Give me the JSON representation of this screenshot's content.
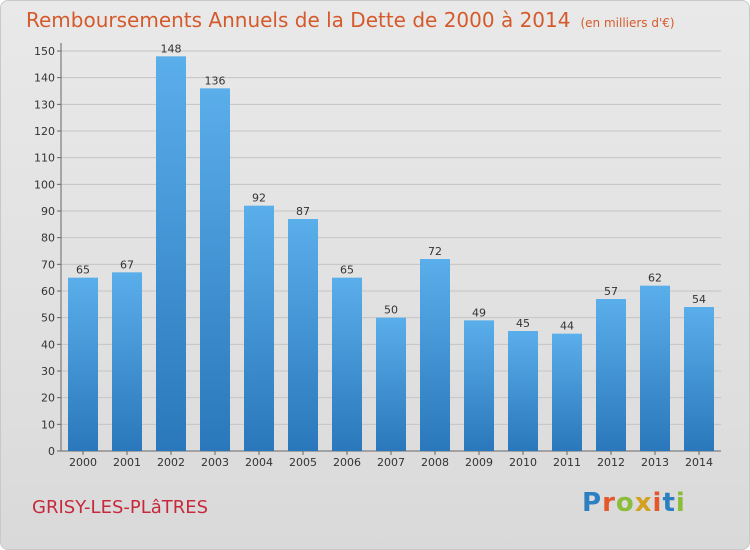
{
  "header": {
    "title": "Remboursements Annuels de la Dette de 2000 à 2014",
    "unit": "(en milliers d'€)"
  },
  "footer": {
    "commune": "GRISY-LES-PLâTRES",
    "logo": [
      "P",
      "r",
      "o",
      "x",
      "i",
      "t",
      "i"
    ]
  },
  "colors": {
    "title": "#d45a2c",
    "commune": "#c7293c",
    "bar_top": "#5aaeea",
    "bar_bottom": "#2a78bb"
  },
  "chart_data": {
    "type": "bar",
    "title": "Remboursements Annuels de la Dette de 2000 à 2014",
    "xlabel": "",
    "ylabel": "",
    "categories": [
      "2000",
      "2001",
      "2002",
      "2003",
      "2004",
      "2005",
      "2006",
      "2007",
      "2008",
      "2009",
      "2010",
      "2011",
      "2012",
      "2013",
      "2014"
    ],
    "values": [
      65,
      67,
      148,
      136,
      92,
      87,
      65,
      50,
      72,
      49,
      45,
      44,
      57,
      62,
      54
    ],
    "ylim": [
      0,
      150
    ],
    "yticks": [
      0,
      10,
      20,
      30,
      40,
      50,
      60,
      70,
      80,
      90,
      100,
      110,
      120,
      130,
      140,
      150
    ],
    "grid": true,
    "data_labels": true
  }
}
